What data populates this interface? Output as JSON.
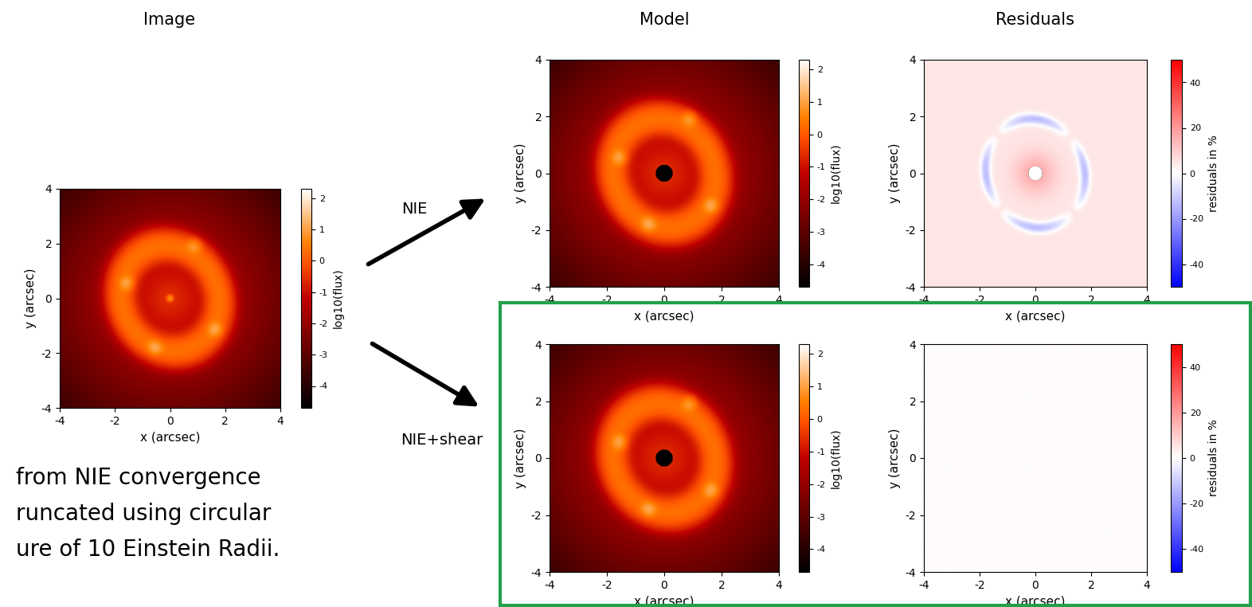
{
  "chart_data": {
    "type": "heatmap",
    "columns": [
      "Image",
      "Model",
      "Residuals"
    ],
    "models": [
      {
        "name": "NIE"
      },
      {
        "name": "NIE+shear"
      }
    ],
    "caption": [
      "from NIE convergence",
      "runcated using circular",
      "ure of 10 Einstein Radii."
    ],
    "xlabel": "x (arcsec)",
    "ylabel": "y (arcsec)",
    "xlim": [
      -4,
      4
    ],
    "ylim": [
      -4,
      4
    ],
    "xticks": [
      -4,
      -2,
      0,
      2,
      4
    ],
    "yticks": [
      -4,
      -2,
      0,
      2,
      4
    ],
    "flux_colorbar": {
      "label": "log10(flux)",
      "range": [
        -4.7,
        2.3
      ],
      "ticks": [
        -4,
        -3,
        -2,
        -1,
        0,
        1,
        2
      ]
    },
    "residual_colorbar": {
      "label": "residuals in %",
      "range": [
        -50,
        50
      ],
      "ticks": [
        -40,
        -20,
        0,
        20,
        40
      ]
    }
  }
}
